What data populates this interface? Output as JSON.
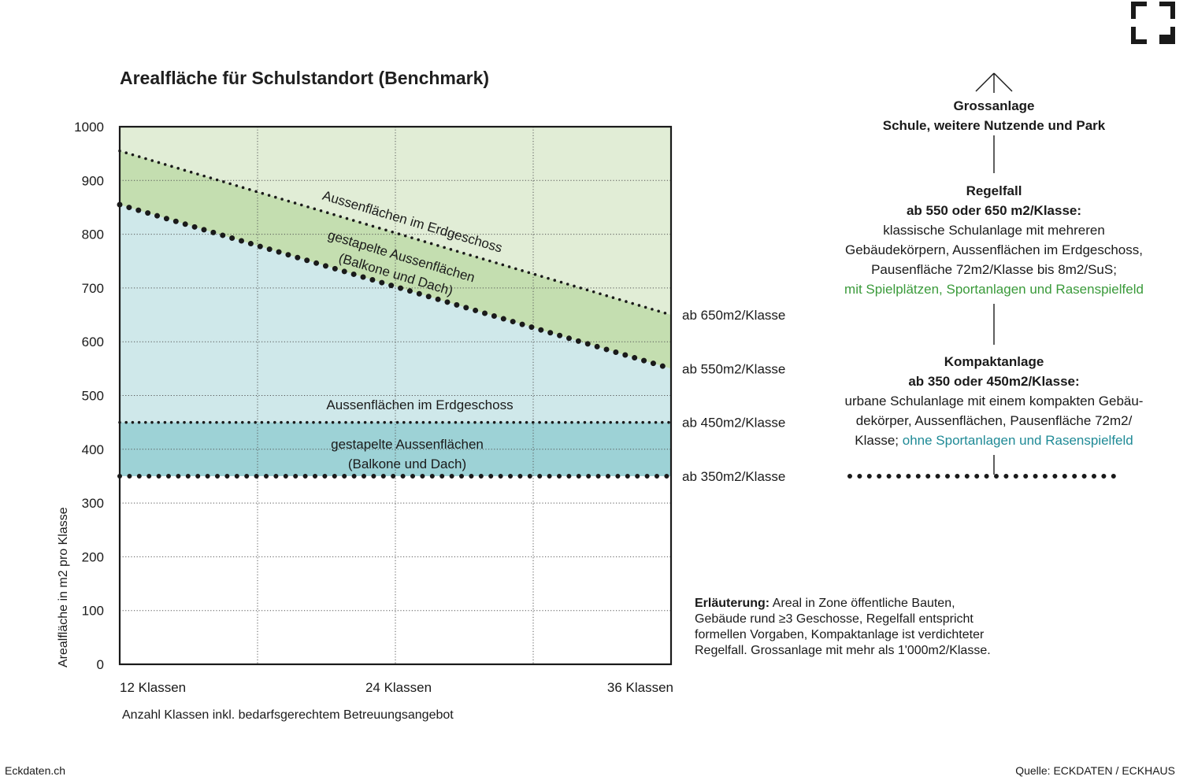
{
  "title": "Arealfläche für Schulstandort (Benchmark)",
  "chart_data": {
    "type": "area",
    "title": "Arealfläche für Schulstandort (Benchmark)",
    "xlabel": "Anzahl Klassen inkl. bedarfsgerechtem Betreuungsangebot",
    "ylabel": "Arealfläche in m2 pro Klasse",
    "ylim": [
      0,
      1000
    ],
    "xlim": [
      12,
      36
    ],
    "yticks": [
      "0",
      "100",
      "200",
      "300",
      "400",
      "500",
      "600",
      "700",
      "800",
      "900",
      "1000"
    ],
    "xticks": [
      {
        "value": 12,
        "label": "12 Klassen"
      },
      {
        "value": 24,
        "label": "24 Klassen"
      },
      {
        "value": 36,
        "label": "36 Klassen"
      }
    ],
    "grid": true,
    "series": [
      {
        "name": "ab 650m2/Klasse",
        "x": [
          12,
          36
        ],
        "y": [
          955,
          650
        ]
      },
      {
        "name": "ab 550m2/Klasse",
        "x": [
          12,
          36
        ],
        "y": [
          855,
          550
        ]
      },
      {
        "name": "ab 450m2/Klasse",
        "x": [
          12,
          36
        ],
        "y": [
          450,
          450
        ]
      },
      {
        "name": "ab 350m2/Klasse",
        "x": [
          12,
          36
        ],
        "y": [
          350,
          350
        ]
      }
    ],
    "zone_labels": {
      "upper_a": "Aussenflächen im Erdgeschoss",
      "upper_b": "gestapelte Aussenflächen",
      "upper_c": "(Balkone und Dach)",
      "lower_a": "Aussenflächen im Erdgeschoss",
      "lower_b": "gestapelte Aussenflächen",
      "lower_c": "(Balkone und Dach)"
    },
    "colors": {
      "top": "#e1edd6",
      "regelfall_band": "#c4deb0",
      "light_blue": "#cfe8ea",
      "kompakt_band": "#9dd2d6",
      "dots": "#1a1a1a"
    }
  },
  "side": {
    "gross_title": "Grossanlage",
    "gross_sub": "Schule, weitere Nutzende und Park",
    "regel_title": "Regelfall",
    "regel_sub": "ab 550 oder 650 m2/Klasse:",
    "regel_l1": "klassische Schulanlage mit mehreren",
    "regel_l2": "Gebäudekörpern, Aussenflächen im Erdgeschoss,",
    "regel_l3": "Pausenfläche 72m2/Klasse bis 8m2/SuS;",
    "regel_l4": "mit Spielplätzen, Sportanlagen und Rasenspielfeld",
    "kompakt_title": "Kompaktanlage",
    "kompakt_sub": "ab 350 oder 450m2/Klasse:",
    "kompakt_l1": "urbane Schulanlage mit einem kompakten Gebäu-",
    "kompakt_l2": "dekörper, Aussenflächen, Pausenfläche 72m2/",
    "kompakt_l3a": "Klasse; ",
    "kompakt_l3b": "ohne Sportanlagen und Rasenspielfeld"
  },
  "note": {
    "bold": "Erläuterung:",
    "l1": " Areal in Zone öffentliche Bauten,",
    "l2": "Gebäude rund ≥3 Geschosse, Regelfall entspricht",
    "l3": "formellen Vorgaben, Kompaktanlage ist verdichteter",
    "l4": "Regelfall. Grossanlage mit mehr als 1'000m2/Klasse."
  },
  "footer": {
    "left": "Eckdaten.ch",
    "right": "Quelle: ECKDATEN / ECKHAUS"
  }
}
